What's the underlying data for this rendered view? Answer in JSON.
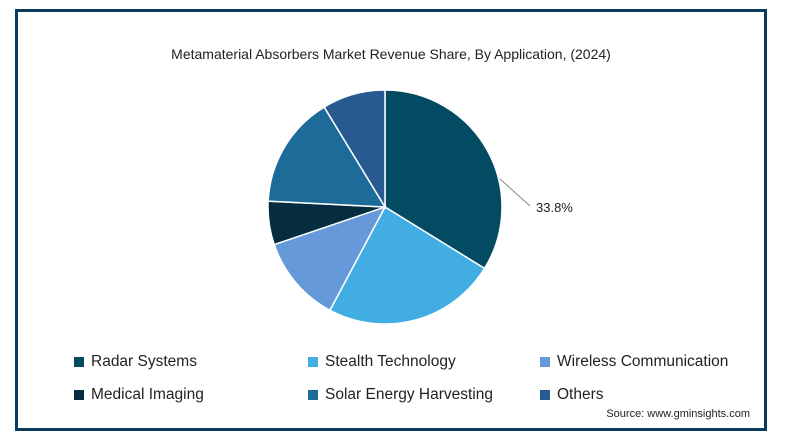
{
  "chart_data": {
    "type": "pie",
    "title": "Metamaterial Absorbers Market Revenue Share, By Application, (2024)",
    "slices": [
      {
        "name": "Radar Systems",
        "value": 33.8,
        "color": "#024b63"
      },
      {
        "name": "Stealth Technology",
        "value": 24.0,
        "color": "#41ade3"
      },
      {
        "name": "Wireless Communication",
        "value": 12.0,
        "color": "#6699d9"
      },
      {
        "name": "Medical Imaging",
        "value": 6.0,
        "color": "#062c40"
      },
      {
        "name": "Solar Energy Harvesting",
        "value": 15.5,
        "color": "#1d6b99"
      },
      {
        "name": "Others",
        "value": 8.7,
        "color": "#265a91"
      }
    ],
    "annotation": "33.8%",
    "legend_position": "bottom"
  },
  "source": "Source: www.gminsights.com"
}
